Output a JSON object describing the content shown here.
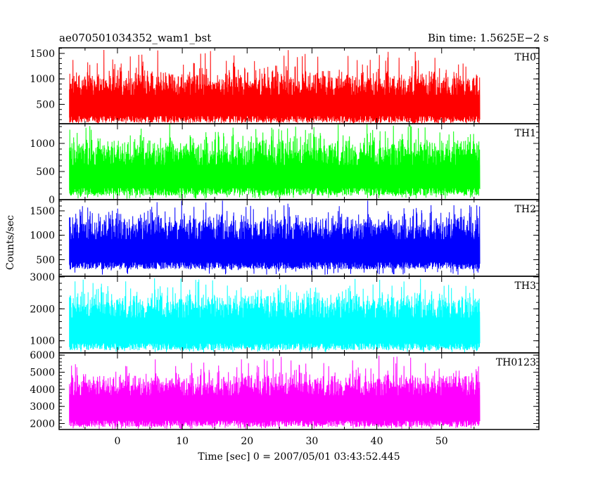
{
  "header": {
    "left_title": "ae070501034352_wam1_bst",
    "right_title": "Bin time: 1.5625E−2 s"
  },
  "chart_data": {
    "type": "line",
    "x_label": "Time [sec] 0 = 2007/05/01 03:43:52.445",
    "y_label": "Counts/sec",
    "xlim": [
      -9,
      65
    ],
    "x_data_range": [
      -7.4,
      55.9
    ],
    "x_ticks": [
      0,
      10,
      20,
      30,
      40,
      50
    ],
    "panels": [
      {
        "name": "TH0",
        "color": "#ff0000",
        "ylim": [
          120,
          1610
        ],
        "y_ticks": [
          500,
          1000,
          1500
        ],
        "base": 140,
        "mean_top": 850,
        "spread": 180,
        "spike_max": 1580
      },
      {
        "name": "TH1",
        "color": "#00ff00",
        "ylim": [
          0,
          1350
        ],
        "y_ticks": [
          0,
          500,
          1000
        ],
        "base": 70,
        "mean_top": 790,
        "spread": 190,
        "spike_max": 1340
      },
      {
        "name": "TH2",
        "color": "#0000ff",
        "ylim": [
          160,
          1730
        ],
        "y_ticks": [
          500,
          1000,
          1500
        ],
        "base": 300,
        "mean_top": 1100,
        "spread": 200,
        "spike_max": 1710
      },
      {
        "name": "TH3",
        "color": "#00ffff",
        "ylim": [
          620,
          3020
        ],
        "y_ticks": [
          1000,
          2000,
          3000
        ],
        "base": 700,
        "mean_top": 2000,
        "spread": 300,
        "spike_max": 2990
      },
      {
        "name": "TH0123",
        "color": "#ff00ff",
        "ylim": [
          1650,
          6130
        ],
        "y_ticks": [
          2000,
          3000,
          4000,
          5000,
          6000
        ],
        "base": 1800,
        "mean_top": 4100,
        "spread": 500,
        "spike_max": 6050
      }
    ]
  }
}
